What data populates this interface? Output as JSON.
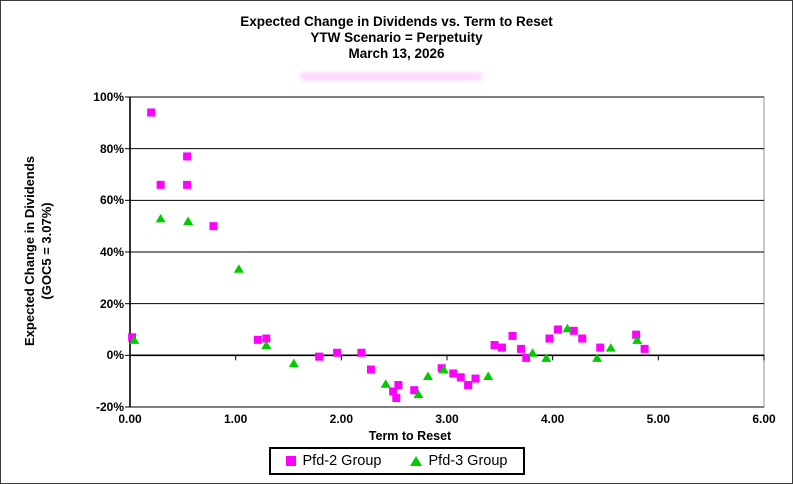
{
  "title": {
    "line1": "Expected Change in Dividends vs. Term to Reset",
    "line2": "YTW Scenario = Perpetuity",
    "line3": "March 13, 2026"
  },
  "colors": {
    "pfd2": "#FF00FF",
    "pfd3": "#00CC00",
    "gridline": "#000000",
    "plot_border": "#909090",
    "background": "#FFFFFF"
  },
  "chart_data": {
    "type": "scatter",
    "title": "Expected Change in Dividends vs. Term to Reset",
    "subtitle": "YTW Scenario = Perpetuity",
    "date": "March 13, 2026",
    "xlabel": "Term to Reset",
    "ylabel_line1": "Expected Change in Dividends",
    "ylabel_line2": "(GOC5 = 3.07%)",
    "xlim": [
      0,
      6
    ],
    "ylim": [
      -20,
      100
    ],
    "x_ticks": [
      "0.00",
      "1.00",
      "2.00",
      "3.00",
      "4.00",
      "5.00",
      "6.00"
    ],
    "x_tick_values": [
      0,
      1,
      2,
      3,
      4,
      5,
      6
    ],
    "y_ticks": [
      "100%",
      "80%",
      "60%",
      "40%",
      "20%",
      "0%",
      "-20%"
    ],
    "y_tick_values": [
      100,
      80,
      60,
      40,
      20,
      0,
      -20
    ],
    "grid": true,
    "x_axis_cross": 0,
    "legend_position": "bottom-center",
    "series": [
      {
        "name": "Pfd-2 Group",
        "marker": "square",
        "color": "#FF00FF",
        "points": [
          [
            0.02,
            7
          ],
          [
            0.2,
            94
          ],
          [
            0.29,
            66
          ],
          [
            0.54,
            77
          ],
          [
            0.54,
            66
          ],
          [
            0.79,
            50
          ],
          [
            1.21,
            6
          ],
          [
            1.29,
            6.5
          ],
          [
            1.79,
            -0.5
          ],
          [
            1.96,
            1
          ],
          [
            2.19,
            1
          ],
          [
            2.28,
            -5.5
          ],
          [
            2.49,
            -14
          ],
          [
            2.52,
            -16.5
          ],
          [
            2.54,
            -11.5
          ],
          [
            2.69,
            -13.5
          ],
          [
            2.95,
            -5
          ],
          [
            3.06,
            -7
          ],
          [
            3.13,
            -8.5
          ],
          [
            3.2,
            -11.5
          ],
          [
            3.27,
            -9
          ],
          [
            3.45,
            4
          ],
          [
            3.52,
            3
          ],
          [
            3.62,
            7.5
          ],
          [
            3.7,
            2.5
          ],
          [
            3.75,
            -1
          ],
          [
            3.97,
            6.5
          ],
          [
            4.05,
            10
          ],
          [
            4.2,
            9.5
          ],
          [
            4.28,
            6.5
          ],
          [
            4.45,
            3
          ],
          [
            4.79,
            8
          ],
          [
            4.87,
            2.5
          ]
        ]
      },
      {
        "name": "Pfd-3 Group",
        "marker": "triangle",
        "color": "#00CC00",
        "points": [
          [
            0.04,
            6
          ],
          [
            0.29,
            53
          ],
          [
            0.55,
            52
          ],
          [
            1.03,
            33.5
          ],
          [
            1.29,
            4
          ],
          [
            1.55,
            -3
          ],
          [
            2.42,
            -11
          ],
          [
            2.73,
            -15
          ],
          [
            2.82,
            -8
          ],
          [
            2.97,
            -5.5
          ],
          [
            3.39,
            -8
          ],
          [
            3.81,
            1
          ],
          [
            3.94,
            -1
          ],
          [
            4.14,
            10.5
          ],
          [
            4.42,
            -1
          ],
          [
            4.55,
            3
          ],
          [
            4.8,
            6
          ]
        ]
      }
    ]
  }
}
